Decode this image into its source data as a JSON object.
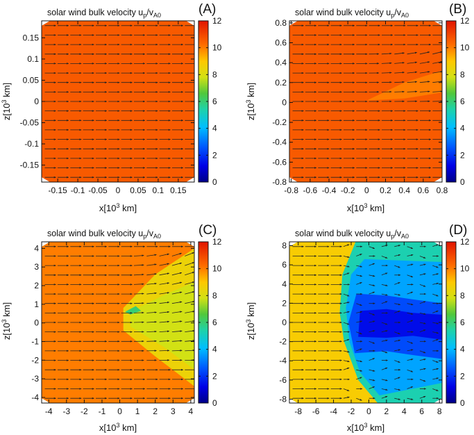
{
  "chart_data": [
    {
      "type": "heatmap",
      "panel_label": "(A)",
      "title": "solar wind bulk velocity u_p/v_A0",
      "title_parts": {
        "main": "solar wind bulk velocity u",
        "sub1": "p",
        "mid": "/v",
        "sub2": "A0"
      },
      "xlabel": "x[10^3 km]",
      "ylabel": "z[10^3 km]",
      "xlim": [
        -0.19,
        0.19
      ],
      "ylim": [
        -0.19,
        0.19
      ],
      "xticks": [
        -0.15,
        -0.1,
        -0.05,
        0,
        0.05,
        0.1,
        0.15
      ],
      "xtick_labels": [
        "-0.15",
        "-0.1",
        "-0.05",
        "0",
        "0.05",
        "0.1",
        "0.15"
      ],
      "yticks": [
        -0.15,
        -0.1,
        -0.05,
        0,
        0.05,
        0.1,
        0.15
      ],
      "ytick_labels": [
        "-0.15",
        "-0.1",
        "-0.05",
        "0",
        "0.05",
        "0.1",
        "0.15"
      ],
      "colorbar": {
        "range": [
          0,
          12
        ],
        "ticks": [
          0,
          2,
          4,
          6,
          8,
          10,
          12
        ],
        "tick_labels": [
          "0",
          "2",
          "4",
          "6",
          "8",
          "10",
          "12"
        ]
      },
      "background_value": 10.6,
      "regions": [],
      "arrow_deflection": {
        "enabled": false
      }
    },
    {
      "type": "heatmap",
      "panel_label": "(B)",
      "title": "solar wind bulk velocity u_p/v_A0",
      "title_parts": {
        "main": "solar wind bulk velocity u",
        "sub1": "p",
        "mid": "/v",
        "sub2": "A0"
      },
      "xlabel": "x[10^3 km]",
      "ylabel": "z[10^3 km]",
      "xlim": [
        -0.82,
        0.8
      ],
      "ylim": [
        -0.8,
        0.82
      ],
      "xticks": [
        -0.8,
        -0.6,
        -0.4,
        -0.2,
        0,
        0.2,
        0.4,
        0.6,
        0.8
      ],
      "xtick_labels": [
        "-0.8",
        "-0.6",
        "-0.4",
        "-0.2",
        "0",
        "0.2",
        "0.4",
        "0.6",
        "0.8"
      ],
      "yticks": [
        -0.8,
        -0.6,
        -0.4,
        -0.2,
        0,
        0.2,
        0.4,
        0.6,
        0.8
      ],
      "ytick_labels": [
        "-0.8",
        "-0.6",
        "-0.4",
        "-0.2",
        "0",
        "0.2",
        "0.4",
        "0.6",
        "0.8"
      ],
      "colorbar": {
        "range": [
          0,
          12
        ],
        "ticks": [
          0,
          2,
          4,
          6,
          8,
          10,
          12
        ],
        "tick_labels": [
          "0",
          "2",
          "4",
          "6",
          "8",
          "10",
          "12"
        ]
      },
      "background_value": 10.6,
      "regions": [
        {
          "value": 10.0,
          "points": [
            [
              0.0,
              0.02
            ],
            [
              0.4,
              0.2
            ],
            [
              0.8,
              0.32
            ],
            [
              0.8,
              0.1
            ],
            [
              0.4,
              0.04
            ]
          ]
        }
      ],
      "arrow_deflection": {
        "enabled": true,
        "x0": 0.0,
        "z_lo": -0.05,
        "z_hi": 0.5,
        "max_angle_deg": 14,
        "speed_scale": 0.9
      }
    },
    {
      "type": "heatmap",
      "panel_label": "(C)",
      "title": "solar wind bulk velocity u_p/v_A0",
      "title_parts": {
        "main": "solar wind bulk velocity u",
        "sub1": "p",
        "mid": "/v",
        "sub2": "A0"
      },
      "xlabel": "x[10^3 km]",
      "ylabel": "z[10^3 km]",
      "xlim": [
        -4.4,
        4.2
      ],
      "ylim": [
        -4.3,
        4.35
      ],
      "xticks": [
        -4,
        -3,
        -2,
        -1,
        0,
        1,
        2,
        3,
        4
      ],
      "xtick_labels": [
        "-4",
        "-3",
        "-2",
        "-1",
        "0",
        "1",
        "2",
        "3",
        "4"
      ],
      "yticks": [
        -4,
        -3,
        -2,
        -1,
        0,
        1,
        2,
        3,
        4
      ],
      "ytick_labels": [
        "-4",
        "-3",
        "-2",
        "-1",
        "0",
        "1",
        "2",
        "3",
        "4"
      ],
      "colorbar": {
        "range": [
          0,
          12
        ],
        "ticks": [
          0,
          2,
          4,
          6,
          8,
          10,
          12
        ],
        "tick_labels": [
          "0",
          "2",
          "4",
          "6",
          "8",
          "10",
          "12"
        ]
      },
      "background_value": 10.0,
      "regions": [
        {
          "value": 8.5,
          "points": [
            [
              0.2,
              0.8
            ],
            [
              2.0,
              2.6
            ],
            [
              4.2,
              4.0
            ],
            [
              4.2,
              -3.4
            ],
            [
              2.0,
              -1.8
            ],
            [
              0.2,
              -0.4
            ]
          ]
        },
        {
          "value": 7.8,
          "points": [
            [
              0.6,
              0.6
            ],
            [
              2.5,
              1.5
            ],
            [
              4.2,
              2.2
            ],
            [
              4.2,
              -2.5
            ],
            [
              2.5,
              -1.3
            ],
            [
              0.6,
              -0.2
            ]
          ]
        },
        {
          "value": 6.0,
          "points": [
            [
              0.3,
              0.6
            ],
            [
              0.9,
              0.9
            ],
            [
              1.2,
              0.65
            ],
            [
              0.6,
              0.45
            ]
          ]
        }
      ],
      "arrow_deflection": {
        "enabled": true,
        "x0": 0.2,
        "z_lo": -2.5,
        "z_hi": 4.0,
        "max_angle_deg": 22,
        "speed_scale": 0.9
      }
    },
    {
      "type": "heatmap",
      "panel_label": "(D)",
      "title": "solar wind bulk velocity u_p/v_A0",
      "title_parts": {
        "main": "solar wind bulk velocity u",
        "sub1": "p",
        "mid": "/v",
        "sub2": "A0"
      },
      "xlabel": "x[10^3 km]",
      "ylabel": "z[10^3 km]",
      "xlim": [
        -9.0,
        8.3
      ],
      "ylim": [
        -8.4,
        8.4
      ],
      "xticks": [
        -8,
        -6,
        -4,
        -2,
        0,
        2,
        4,
        6,
        8
      ],
      "xtick_labels": [
        "-8",
        "-6",
        "-4",
        "-2",
        "0",
        "2",
        "4",
        "6",
        "8"
      ],
      "yticks": [
        -8,
        -6,
        -4,
        -2,
        0,
        2,
        4,
        6,
        8
      ],
      "ytick_labels": [
        "-8",
        "-6",
        "-4",
        "-2",
        "0",
        "2",
        "4",
        "6",
        "8"
      ],
      "colorbar": {
        "range": [
          0,
          12
        ],
        "ticks": [
          0,
          2,
          4,
          6,
          8,
          10,
          12
        ],
        "tick_labels": [
          "0",
          "2",
          "4",
          "6",
          "8",
          "10",
          "12"
        ]
      },
      "background_value": 8.8,
      "regions": [
        {
          "value": 5.3,
          "points": [
            [
              -1.5,
              8.4
            ],
            [
              8.3,
              8.4
            ],
            [
              8.3,
              -8.4
            ],
            [
              1.0,
              -8.4
            ],
            [
              -1.2,
              -6.0
            ],
            [
              -2.8,
              -2.0
            ],
            [
              -3.3,
              1.0
            ],
            [
              -3.0,
              5.0
            ]
          ]
        },
        {
          "value": 3.7,
          "points": [
            [
              -0.5,
              6.6
            ],
            [
              8.3,
              6.3
            ],
            [
              8.3,
              -6.3
            ],
            [
              1.2,
              -7.6
            ],
            [
              -1.0,
              -5.2
            ],
            [
              -2.2,
              -2.0
            ],
            [
              -2.6,
              1.5
            ],
            [
              -2.0,
              5.0
            ]
          ]
        },
        {
          "value": 2.4,
          "points": [
            [
              -1.4,
              3.0
            ],
            [
              2.0,
              2.8
            ],
            [
              5.0,
              2.4
            ],
            [
              8.3,
              2.0
            ],
            [
              8.3,
              -3.8
            ],
            [
              5.0,
              -3.4
            ],
            [
              2.0,
              -3.0
            ],
            [
              -1.6,
              -3.2
            ],
            [
              -2.3,
              0.0
            ]
          ]
        },
        {
          "value": 1.4,
          "points": [
            [
              -1.0,
              1.2
            ],
            [
              2.0,
              1.4
            ],
            [
              5.0,
              1.0
            ],
            [
              8.3,
              0.8
            ],
            [
              8.3,
              -1.8
            ],
            [
              5.0,
              -1.4
            ],
            [
              2.0,
              -1.6
            ],
            [
              -1.2,
              -1.5
            ]
          ]
        }
      ],
      "arrow_deflection": {
        "enabled": true,
        "x0": -3.0,
        "z_lo": -8.4,
        "z_hi": 8.4,
        "max_angle_deg": 35,
        "speed_scale": 0.55
      }
    }
  ]
}
